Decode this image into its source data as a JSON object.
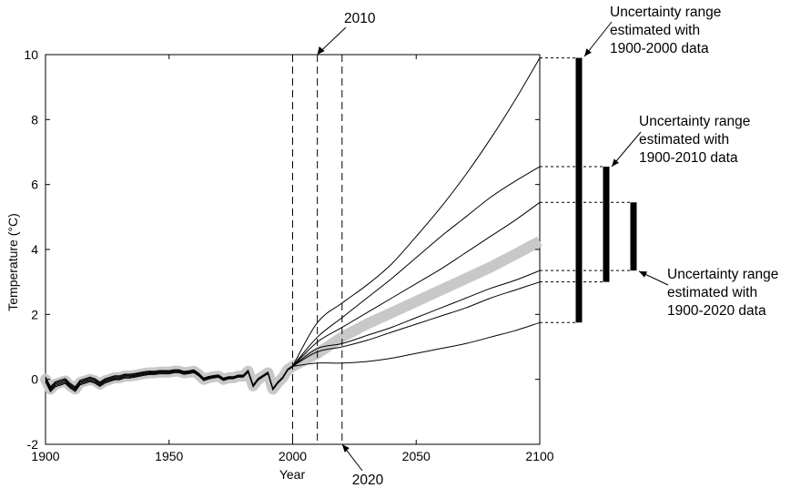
{
  "chart_data": {
    "type": "line",
    "xlabel": "Year",
    "ylabel": "Temperature (°C)",
    "xlim": [
      1900,
      2100
    ],
    "ylim": [
      -2,
      10
    ],
    "xticks": [
      1900,
      1950,
      2000,
      2050,
      2100
    ],
    "yticks": [
      -2,
      0,
      2,
      4,
      6,
      8,
      10
    ],
    "grid": false,
    "vlines": [
      {
        "x": 2000,
        "label": ""
      },
      {
        "x": 2010,
        "label": "2010"
      },
      {
        "x": 2020,
        "label": "2020"
      }
    ],
    "historical": {
      "x": [
        1900,
        1902,
        1904,
        1906,
        1908,
        1910,
        1912,
        1914,
        1916,
        1918,
        1920,
        1922,
        1924,
        1926,
        1928,
        1930,
        1932,
        1934,
        1936,
        1938,
        1940,
        1942,
        1944,
        1946,
        1948,
        1950,
        1952,
        1954,
        1956,
        1958,
        1960,
        1962,
        1964,
        1966,
        1968,
        1970,
        1972,
        1974,
        1976,
        1978,
        1980,
        1982,
        1984,
        1986,
        1988,
        1990,
        1992,
        1994,
        1996,
        1998,
        2000
      ],
      "y": [
        0.0,
        -0.3,
        -0.15,
        -0.1,
        -0.05,
        -0.2,
        -0.3,
        -0.1,
        -0.05,
        0.0,
        -0.05,
        -0.15,
        -0.05,
        0.0,
        0.05,
        0.05,
        0.1,
        0.1,
        0.12,
        0.15,
        0.18,
        0.2,
        0.2,
        0.22,
        0.22,
        0.22,
        0.25,
        0.25,
        0.2,
        0.22,
        0.25,
        0.15,
        0.0,
        0.05,
        0.08,
        0.1,
        0.0,
        0.05,
        0.05,
        0.1,
        0.1,
        0.25,
        -0.2,
        0.0,
        0.1,
        0.2,
        -0.3,
        -0.1,
        0.05,
        0.3,
        0.4
      ]
    },
    "projections": {
      "x": [
        2000,
        2010,
        2020,
        2030,
        2040,
        2050,
        2060,
        2070,
        2080,
        2090,
        2100
      ],
      "series": [
        {
          "values": [
            0.4,
            1.75,
            2.35,
            2.9,
            3.55,
            4.4,
            5.3,
            6.3,
            7.4,
            8.6,
            9.9
          ]
        },
        {
          "values": [
            0.4,
            1.3,
            1.9,
            2.5,
            3.1,
            3.75,
            4.4,
            5.0,
            5.6,
            6.1,
            6.55
          ]
        },
        {
          "values": [
            0.4,
            1.15,
            1.6,
            2.05,
            2.5,
            2.95,
            3.4,
            3.9,
            4.4,
            4.9,
            5.45
          ]
        },
        {
          "values": [
            0.4,
            0.95,
            1.1,
            1.35,
            1.6,
            1.9,
            2.2,
            2.5,
            2.8,
            3.05,
            3.35
          ]
        },
        {
          "values": [
            0.4,
            0.85,
            1.0,
            1.2,
            1.45,
            1.7,
            1.95,
            2.2,
            2.5,
            2.75,
            3.0
          ]
        },
        {
          "values": [
            0.4,
            0.5,
            0.5,
            0.55,
            0.65,
            0.8,
            0.95,
            1.1,
            1.3,
            1.5,
            1.75
          ]
        }
      ],
      "observed_band": {
        "values": [
          0.4,
          0.8,
          1.3,
          1.7,
          2.05,
          2.4,
          2.75,
          3.1,
          3.45,
          3.85,
          4.25
        ]
      }
    },
    "uncertainty_ranges": [
      {
        "label_lines": [
          "Uncertainty range",
          "estimated with",
          "1900-2000 data"
        ],
        "low": 1.75,
        "high": 9.9
      },
      {
        "label_lines": [
          "Uncertainty range",
          "estimated with",
          "1900-2010 data"
        ],
        "low": 3.0,
        "high": 6.55
      },
      {
        "label_lines": [
          "Uncertainty range",
          "estimated with",
          "1900-2020 data"
        ],
        "low": 3.35,
        "high": 5.45
      }
    ]
  }
}
